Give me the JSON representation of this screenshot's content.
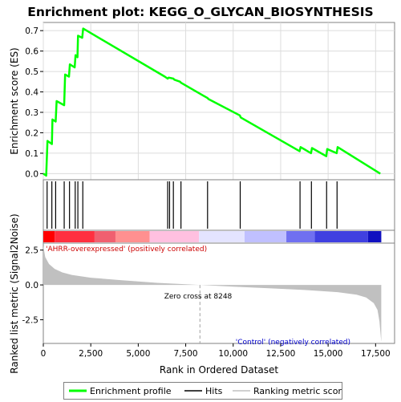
{
  "chart_data": {
    "type": "line",
    "title": "Enrichment plot: KEGG_O_GLYCAN_BIOSYNTHESIS",
    "xlabel": "Rank in Ordered Dataset",
    "xlim": [
      0,
      18500
    ],
    "x_ticks": [
      "0",
      "2,500",
      "5,000",
      "7,500",
      "10,000",
      "12,500",
      "15,000",
      "17,500"
    ],
    "x_tick_values": [
      0,
      2500,
      5000,
      7500,
      10000,
      12500,
      15000,
      17500
    ],
    "top_panel": {
      "ylabel": "Enrichment score (ES)",
      "ylim": [
        -0.03,
        0.74
      ],
      "y_ticks": [
        "0.0",
        "0.1",
        "0.2",
        "0.3",
        "0.4",
        "0.5",
        "0.6",
        "0.7"
      ],
      "y_tick_values": [
        0,
        0.1,
        0.2,
        0.3,
        0.4,
        0.5,
        0.6,
        0.7
      ],
      "grid": true,
      "series": [
        {
          "name": "Enrichment profile",
          "color": "#00ff00",
          "x": [
            0,
            150,
            220,
            450,
            480,
            650,
            700,
            1100,
            1150,
            1350,
            1400,
            1650,
            1700,
            1800,
            1830,
            2050,
            2100,
            6400,
            6550,
            6600,
            6850,
            6900,
            7200,
            7250,
            8650,
            8700,
            10350,
            10400,
            13500,
            13550,
            14100,
            14150,
            14900,
            14950,
            15450,
            15500,
            17750
          ],
          "y": [
            0.0,
            -0.01,
            0.16,
            0.145,
            0.265,
            0.255,
            0.355,
            0.335,
            0.485,
            0.475,
            0.535,
            0.52,
            0.58,
            0.57,
            0.675,
            0.665,
            0.71,
            0.475,
            0.465,
            0.47,
            0.465,
            0.46,
            0.45,
            0.445,
            0.37,
            0.365,
            0.285,
            0.275,
            0.11,
            0.13,
            0.1,
            0.125,
            0.085,
            0.12,
            0.1,
            0.13,
            0.0
          ]
        }
      ]
    },
    "hits_panel": {
      "hit_ranks": [
        200,
        450,
        650,
        1100,
        1380,
        1680,
        1820,
        2080,
        6550,
        6650,
        6850,
        7250,
        8650,
        10370,
        13520,
        14120,
        14920,
        15470
      ]
    },
    "heat_bar": {
      "segments": [
        {
          "from": 0,
          "to": 600,
          "color": "#ff0000"
        },
        {
          "from": 600,
          "to": 2700,
          "color": "#ff3040"
        },
        {
          "from": 2700,
          "to": 3800,
          "color": "#f06070"
        },
        {
          "from": 3800,
          "to": 5600,
          "color": "#ff9090"
        },
        {
          "from": 5600,
          "to": 8200,
          "color": "#ffc0e0"
        },
        {
          "from": 8200,
          "to": 10600,
          "color": "#e4e4ff"
        },
        {
          "from": 10600,
          "to": 12800,
          "color": "#c0c0ff"
        },
        {
          "from": 12800,
          "to": 14300,
          "color": "#7070f0"
        },
        {
          "from": 14300,
          "to": 17100,
          "color": "#4040e0"
        },
        {
          "from": 17100,
          "to": 17800,
          "color": "#1010c0"
        }
      ]
    },
    "bottom_panel": {
      "ylabel": "Ranked list metric (Signal2Noise)",
      "ylim": [
        -4.2,
        3.0
      ],
      "y_ticks": [
        "-2.5",
        "0.0",
        "2.5"
      ],
      "y_tick_values": [
        -2.5,
        0,
        2.5
      ],
      "series": [
        {
          "name": "Ranking metric scores",
          "color": "#c0c0c0",
          "x": [
            0,
            100,
            300,
            600,
            1000,
            1500,
            2500,
            4000,
            6000,
            8248,
            10000,
            12000,
            14000,
            15500,
            16500,
            17000,
            17400,
            17600,
            17700,
            17800
          ],
          "y": [
            2.8,
            2.0,
            1.5,
            1.15,
            0.9,
            0.72,
            0.52,
            0.35,
            0.15,
            0.0,
            -0.12,
            -0.25,
            -0.38,
            -0.52,
            -0.7,
            -0.9,
            -1.3,
            -1.8,
            -2.6,
            -4.1
          ]
        }
      ],
      "zero_cross_rank": 8248,
      "annotations": {
        "zero_cross": "Zero cross at 8248",
        "positive": "'AHRR-overexpressed' (positively correlated)",
        "negative": "'Control' (negatively correlated)"
      }
    },
    "legend": {
      "position": "bottom",
      "items": [
        {
          "label": "Enrichment profile",
          "color": "#00ff00"
        },
        {
          "label": "Hits",
          "color": "#000000"
        },
        {
          "label": "Ranking metric scores",
          "color": "#c0c0c0"
        }
      ]
    }
  }
}
